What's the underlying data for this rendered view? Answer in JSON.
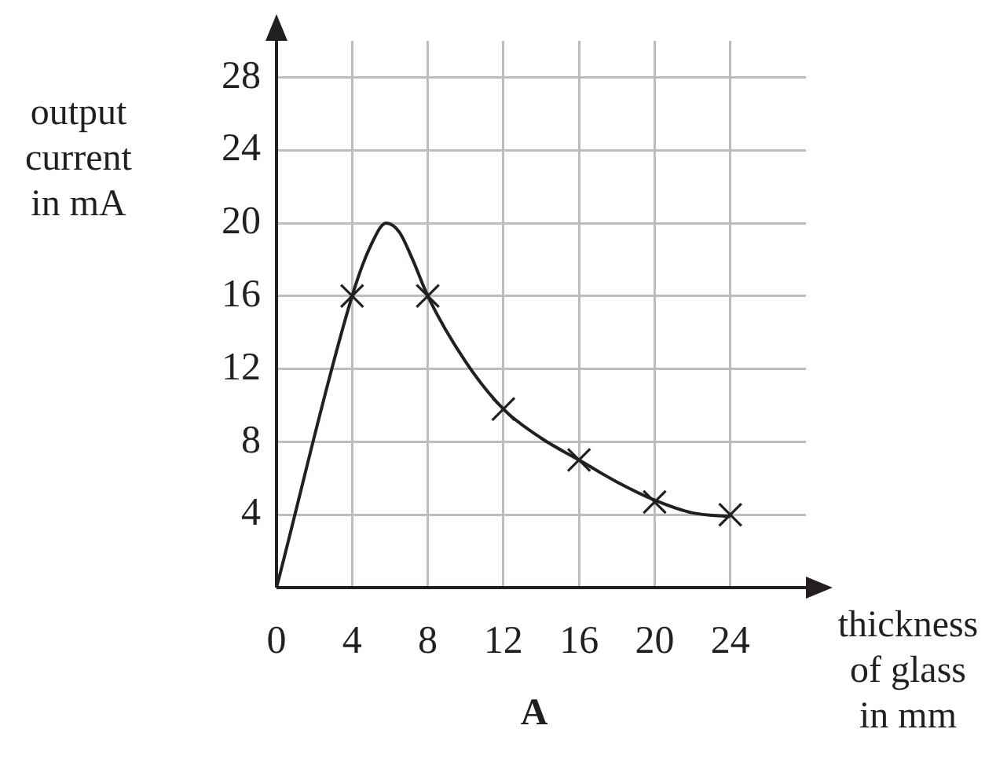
{
  "chart_data": {
    "type": "line",
    "title": "A",
    "xlabel": "thickness\nof glass\nin mm",
    "ylabel": "output\ncurrent\nin mA",
    "xlim": [
      0,
      28
    ],
    "ylim": [
      0,
      30
    ],
    "xticks": [
      0,
      4,
      8,
      12,
      16,
      20,
      24
    ],
    "yticks": [
      4,
      8,
      12,
      16,
      20,
      24,
      28
    ],
    "grid": true,
    "legend": false,
    "series": [
      {
        "type": "line",
        "color": "#231f20",
        "marker": "none",
        "x": [
          0,
          4,
          5,
          5.8,
          6.5,
          7.2,
          8,
          10,
          12,
          14,
          16,
          18,
          20,
          22,
          24
        ],
        "values": [
          0,
          16,
          18.8,
          20,
          19.5,
          18,
          16,
          12.4,
          9.8,
          8.2,
          7,
          5.8,
          4.8,
          4.1,
          3.9
        ]
      },
      {
        "type": "scatter",
        "color": "#231f20",
        "marker": "cross",
        "x": [
          4,
          8,
          12,
          16,
          20,
          24
        ],
        "values": [
          16,
          16,
          9.8,
          7,
          4.7,
          4
        ]
      }
    ]
  }
}
